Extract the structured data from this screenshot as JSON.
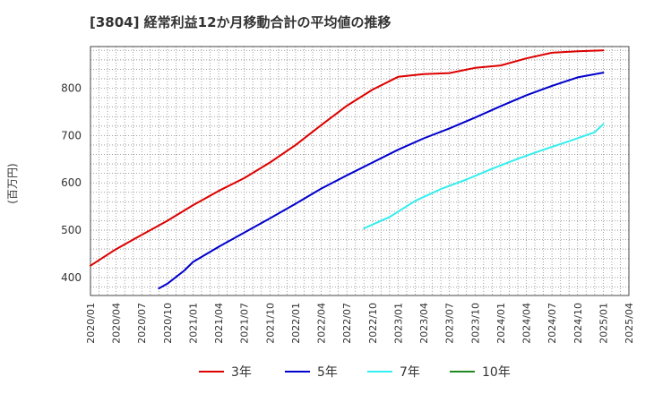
{
  "chart_data": {
    "type": "line",
    "title": "[3804]  経常利益12か月移動合計の平均値の推移",
    "ylabel": "(百万円)",
    "xlabel": "",
    "ylim": [
      362,
      888
    ],
    "yticks": [
      400,
      500,
      600,
      700,
      800
    ],
    "xlim": [
      "2020/01",
      "2025/04"
    ],
    "xticks": [
      "2020/01",
      "2020/04",
      "2020/07",
      "2020/10",
      "2021/01",
      "2021/04",
      "2021/07",
      "2021/10",
      "2022/01",
      "2022/04",
      "2022/07",
      "2022/10",
      "2023/01",
      "2023/04",
      "2023/07",
      "2023/10",
      "2024/01",
      "2024/04",
      "2024/07",
      "2024/10",
      "2025/01",
      "2025/04"
    ],
    "grid": true,
    "legend": "bottom",
    "series": [
      {
        "name": "3年",
        "color": "#dd0000",
        "x": [
          "2020/01",
          "2020/04",
          "2020/07",
          "2020/10",
          "2021/01",
          "2021/04",
          "2021/07",
          "2021/10",
          "2022/01",
          "2022/04",
          "2022/07",
          "2022/10",
          "2023/01",
          "2023/04",
          "2023/07",
          "2023/10",
          "2024/01",
          "2024/04",
          "2024/07",
          "2024/10",
          "2025/01"
        ],
        "values": [
          425,
          460,
          490,
          520,
          553,
          583,
          610,
          643,
          680,
          722,
          763,
          797,
          824,
          830,
          832,
          843,
          848,
          863,
          875,
          878,
          880
        ]
      },
      {
        "name": "5年",
        "color": "#0000cc",
        "x": [
          "2020/09",
          "2020/10",
          "2020/12",
          "2021/01",
          "2021/04",
          "2021/07",
          "2021/10",
          "2022/01",
          "2022/04",
          "2022/07",
          "2022/10",
          "2023/01",
          "2023/04",
          "2023/07",
          "2023/10",
          "2024/01",
          "2024/04",
          "2024/07",
          "2024/10",
          "2025/01"
        ],
        "values": [
          377,
          387,
          415,
          433,
          465,
          495,
          525,
          556,
          588,
          616,
          643,
          670,
          694,
          715,
          738,
          762,
          785,
          805,
          823,
          833
        ]
      },
      {
        "name": "7年",
        "color": "#33eeee",
        "x": [
          "2022/09",
          "2022/12",
          "2023/03",
          "2023/06",
          "2023/09",
          "2023/12",
          "2024/03",
          "2024/06",
          "2024/09",
          "2024/12",
          "2025/01"
        ],
        "values": [
          504,
          528,
          562,
          587,
          607,
          630,
          651,
          670,
          688,
          707,
          724
        ]
      },
      {
        "name": "10年",
        "color": "#228822",
        "x": [],
        "values": []
      }
    ]
  }
}
